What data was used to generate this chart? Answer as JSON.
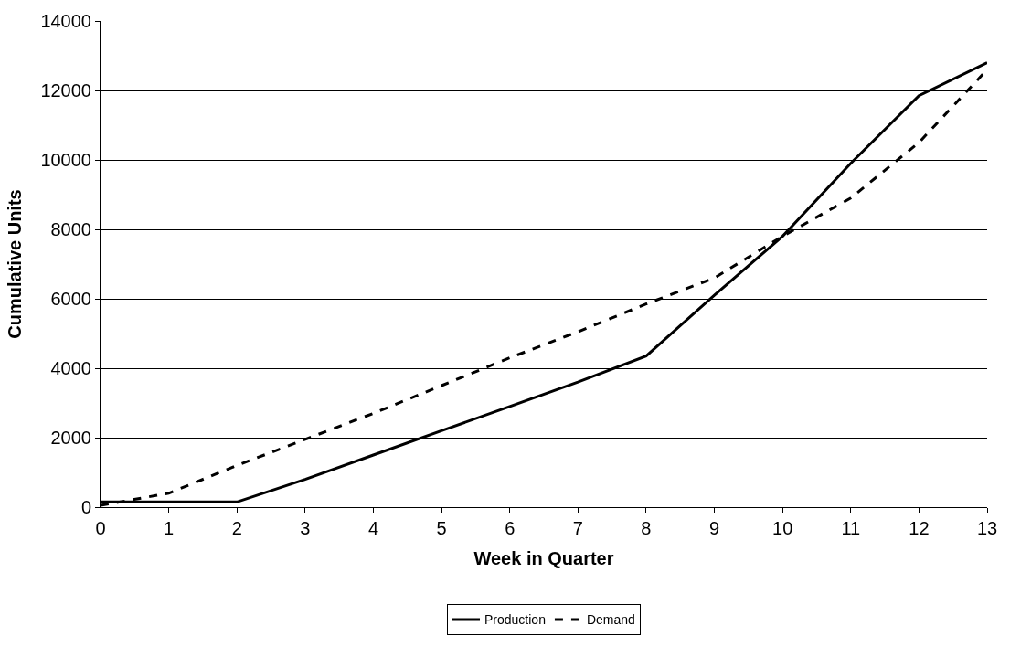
{
  "chart_data": {
    "type": "line",
    "xlabel": "Week in Quarter",
    "ylabel": "Cumulative Units",
    "x": [
      0,
      1,
      2,
      3,
      4,
      5,
      6,
      7,
      8,
      9,
      10,
      11,
      12,
      13
    ],
    "series": [
      {
        "name": "Production",
        "color": "#000000",
        "line_style": "solid",
        "values": [
          150,
          150,
          150,
          800,
          1500,
          2200,
          2900,
          3600,
          4350,
          6100,
          7800,
          9900,
          11850,
          12800
        ]
      },
      {
        "name": "Demand",
        "color": "#000000",
        "line_style": "dashed",
        "values": [
          50,
          400,
          1200,
          1950,
          2700,
          3500,
          4300,
          5050,
          5850,
          6600,
          7800,
          8900,
          10500,
          12600
        ]
      }
    ],
    "xlim": [
      0,
      13
    ],
    "xticks": [
      0,
      1,
      2,
      3,
      4,
      5,
      6,
      7,
      8,
      9,
      10,
      11,
      12,
      13
    ],
    "ylim": [
      0,
      14000
    ],
    "yticks": [
      0,
      2000,
      4000,
      6000,
      8000,
      10000,
      12000,
      14000
    ],
    "grid": "y",
    "legend": "bottom",
    "marker": "none"
  }
}
